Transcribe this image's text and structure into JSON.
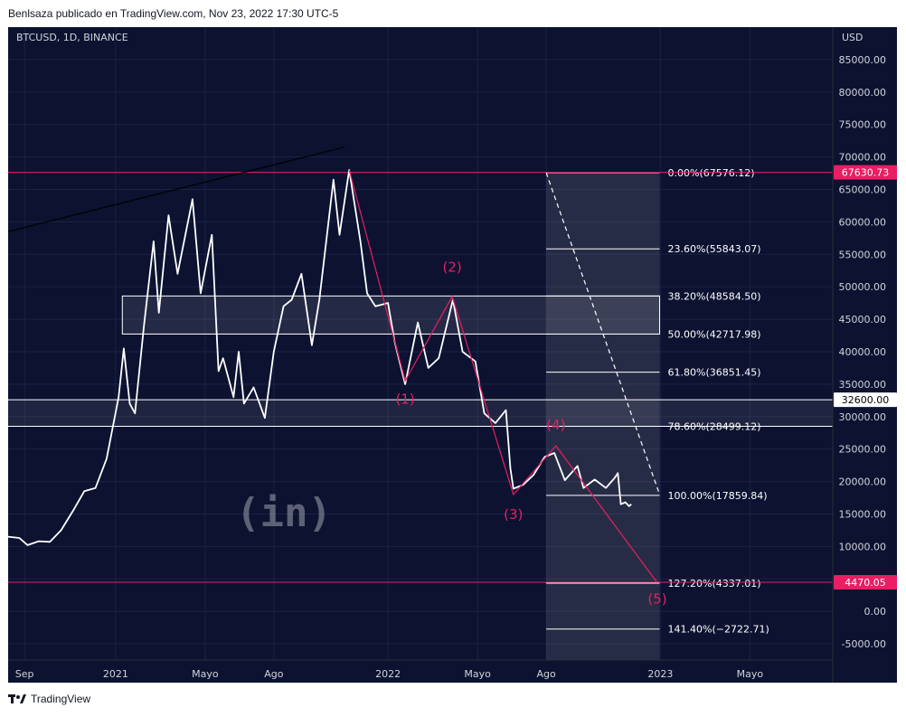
{
  "header": {
    "attribution": "Benlsaza publicado en TradingView.com, Nov 23, 2022 17:30 UTC-5"
  },
  "footer": {
    "brand": "TradingView",
    "logo_icon": "tradingview-logo-icon"
  },
  "watermark": {
    "text": "(in)",
    "icon": "beincrypto-logo-icon"
  },
  "chart_data": {
    "type": "line",
    "symbol": "BTCUSD, 1D, BINANCE",
    "currency_label": "USD",
    "x_ticks": [
      "Sep",
      "2021",
      "Mayo",
      "Ago",
      "2022",
      "Mayo",
      "Ago",
      "2023",
      "Mayo"
    ],
    "x_tick_dates": [
      "2020-09-01",
      "2021-01-01",
      "2021-05-01",
      "2021-08-01",
      "2022-01-01",
      "2022-05-01",
      "2022-08-01",
      "2023-01-01",
      "2023-05-01"
    ],
    "x_range": [
      "2020-08-10",
      "2023-08-20"
    ],
    "y_range": [
      -7500,
      90000
    ],
    "y_ticks": [
      "85000.00",
      "80000.00",
      "75000.00",
      "70000.00",
      "65000.00",
      "60000.00",
      "55000.00",
      "50000.00",
      "45000.00",
      "40000.00",
      "35000.00",
      "30000.00",
      "25000.00",
      "20000.00",
      "15000.00",
      "10000.00",
      "5000.00",
      "0.00",
      "-5000.00"
    ],
    "y_tick_values": [
      85000,
      80000,
      75000,
      70000,
      65000,
      60000,
      55000,
      50000,
      45000,
      40000,
      35000,
      30000,
      25000,
      20000,
      15000,
      10000,
      5000,
      0,
      -5000
    ],
    "price_series": {
      "color": "#ffffff",
      "points": [
        [
          "2020-08-10",
          11500
        ],
        [
          "2020-08-25",
          11300
        ],
        [
          "2020-09-05",
          10200
        ],
        [
          "2020-09-20",
          10800
        ],
        [
          "2020-10-05",
          10700
        ],
        [
          "2020-10-20",
          12500
        ],
        [
          "2020-11-05",
          15500
        ],
        [
          "2020-11-20",
          18500
        ],
        [
          "2020-12-05",
          19000
        ],
        [
          "2020-12-20",
          23500
        ],
        [
          "2021-01-05",
          33000
        ],
        [
          "2021-01-12",
          40500
        ],
        [
          "2021-01-20",
          32000
        ],
        [
          "2021-01-27",
          30500
        ],
        [
          "2021-02-08",
          44000
        ],
        [
          "2021-02-21",
          57000
        ],
        [
          "2021-02-28",
          46000
        ],
        [
          "2021-03-13",
          61000
        ],
        [
          "2021-03-25",
          52000
        ],
        [
          "2021-04-14",
          63500
        ],
        [
          "2021-04-25",
          49000
        ],
        [
          "2021-05-10",
          58000
        ],
        [
          "2021-05-19",
          37000
        ],
        [
          "2021-05-25",
          39000
        ],
        [
          "2021-06-08",
          33000
        ],
        [
          "2021-06-15",
          40000
        ],
        [
          "2021-06-22",
          32000
        ],
        [
          "2021-07-05",
          34500
        ],
        [
          "2021-07-20",
          29800
        ],
        [
          "2021-08-01",
          40000
        ],
        [
          "2021-08-14",
          47000
        ],
        [
          "2021-08-25",
          48000
        ],
        [
          "2021-09-07",
          52000
        ],
        [
          "2021-09-21",
          41000
        ],
        [
          "2021-10-01",
          48000
        ],
        [
          "2021-10-20",
          66500
        ],
        [
          "2021-10-28",
          58000
        ],
        [
          "2021-11-10",
          68000
        ],
        [
          "2021-11-25",
          57000
        ],
        [
          "2021-12-04",
          49000
        ],
        [
          "2021-12-15",
          47000
        ],
        [
          "2022-01-01",
          47500
        ],
        [
          "2022-01-10",
          41500
        ],
        [
          "2022-01-24",
          35000
        ],
        [
          "2022-02-10",
          44500
        ],
        [
          "2022-02-24",
          37500
        ],
        [
          "2022-03-10",
          39000
        ],
        [
          "2022-03-29",
          48000
        ],
        [
          "2022-04-11",
          40000
        ],
        [
          "2022-04-28",
          38500
        ],
        [
          "2022-05-10",
          30500
        ],
        [
          "2022-05-25",
          29000
        ],
        [
          "2022-06-08",
          31000
        ],
        [
          "2022-06-14",
          22000
        ],
        [
          "2022-06-18",
          18900
        ],
        [
          "2022-07-01",
          19500
        ],
        [
          "2022-07-15",
          21000
        ],
        [
          "2022-07-30",
          23800
        ],
        [
          "2022-08-12",
          24400
        ],
        [
          "2022-08-26",
          20200
        ],
        [
          "2022-09-12",
          22400
        ],
        [
          "2022-09-20",
          19000
        ],
        [
          "2022-10-05",
          20300
        ],
        [
          "2022-10-20",
          19000
        ],
        [
          "2022-11-01",
          20600
        ],
        [
          "2022-11-05",
          21300
        ],
        [
          "2022-11-09",
          16500
        ],
        [
          "2022-11-15",
          16800
        ],
        [
          "2022-11-20",
          16200
        ],
        [
          "2022-11-23",
          16500
        ]
      ]
    },
    "trend_line": {
      "color": "#000000",
      "from": [
        "2020-08-10",
        58500
      ],
      "to": [
        "2021-11-03",
        71500
      ]
    },
    "wave_path": {
      "color": "#e91e63",
      "points": [
        [
          "2021-11-10",
          68000
        ],
        [
          "2022-01-24",
          35500
        ],
        [
          "2022-03-28",
          48500
        ],
        [
          "2022-06-18",
          18000
        ],
        [
          "2022-08-14",
          25500
        ],
        [
          "2022-12-28",
          4400
        ]
      ]
    },
    "wave_labels": [
      {
        "text": "(1)",
        "x": "2022-01-24",
        "y": 32000
      },
      {
        "text": "(2)",
        "x": "2022-03-28",
        "y": 52300
      },
      {
        "text": "(3)",
        "x": "2022-06-18",
        "y": 14200
      },
      {
        "text": "(4)",
        "x": "2022-08-14",
        "y": 28000
      },
      {
        "text": "(5)",
        "x": "2022-12-28",
        "y": 1200
      }
    ],
    "horizontal_lines": [
      {
        "value": 67630.73,
        "label": "67630.73",
        "color": "#e91e63"
      },
      {
        "value": 4470.05,
        "label": "4470.05",
        "color": "#e91e63"
      },
      {
        "value": 32600.0,
        "label": "32600.00",
        "color": "#ffffff"
      },
      {
        "value": 28499.12,
        "label": "",
        "color": "#ffffff"
      }
    ],
    "price_badges": [
      {
        "value": 67630.73,
        "label": "67630.73",
        "bg": "#e91e63",
        "fg": "#ffffff"
      },
      {
        "value": 32600.0,
        "label": "32600.00",
        "bg": "#ffffff",
        "fg": "#000000"
      },
      {
        "value": 4470.05,
        "label": "4470.05",
        "bg": "#e91e63",
        "fg": "#ffffff"
      }
    ],
    "range_box": {
      "from": "2021-01-10",
      "to": "2022-12-31",
      "top": 48584.5,
      "bottom": 42717.98,
      "color": "#ffffff"
    },
    "fib_box": {
      "from": "2022-08-01",
      "to": "2022-12-31",
      "top": 67576.12,
      "bottom": -7500
    },
    "fib_levels": [
      {
        "value": 67576.12,
        "label": "0.00%(67576.12)"
      },
      {
        "value": 55843.07,
        "label": "23.60%(55843.07)"
      },
      {
        "value": 48584.5,
        "label": "38.20%(48584.50)"
      },
      {
        "value": 42717.98,
        "label": "50.00%(42717.98)"
      },
      {
        "value": 36851.45,
        "label": "61.80%(36851.45)"
      },
      {
        "value": 28499.12,
        "label": "78.60%(28499.12)"
      },
      {
        "value": 17859.84,
        "label": "100.00%(17859.84)"
      },
      {
        "value": 4337.01,
        "label": "127.20%(4337.01)"
      },
      {
        "value": -2722.71,
        "label": "141.40%(−2722.71)"
      }
    ],
    "dashed_trend": {
      "color": "#ffffff",
      "from": [
        "2022-08-01",
        67576.12
      ],
      "to": [
        "2022-12-31",
        18000
      ]
    }
  }
}
